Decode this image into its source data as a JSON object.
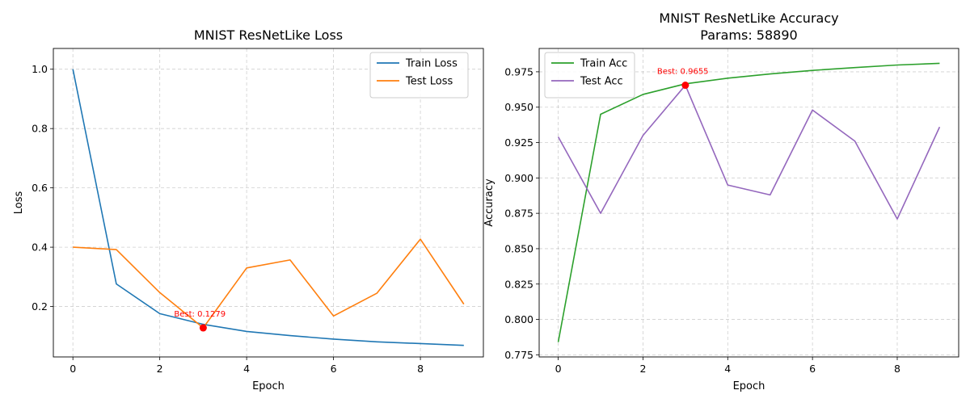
{
  "chart_data": [
    {
      "type": "line",
      "title": "MNIST ResNetLike Loss",
      "xlabel": "Epoch",
      "ylabel": "Loss",
      "xlim": [
        -0.45,
        9.45
      ],
      "ylim": [
        0.03,
        1.07
      ],
      "xticks": [
        0,
        2,
        4,
        6,
        8
      ],
      "xtick_labels": [
        "0",
        "2",
        "4",
        "6",
        "8"
      ],
      "yticks": [
        0.2,
        0.4,
        0.6,
        0.8,
        1.0
      ],
      "ytick_labels": [
        "0.2",
        "0.4",
        "0.6",
        "0.8",
        "1.0"
      ],
      "grid": true,
      "legend_position": "upper right",
      "x": [
        0,
        1,
        2,
        3,
        4,
        5,
        6,
        7,
        8,
        9
      ],
      "series": [
        {
          "name": "Train Loss",
          "color": "#1f77b4",
          "values": [
            1.0,
            0.276,
            0.176,
            0.14,
            0.116,
            0.102,
            0.09,
            0.081,
            0.075,
            0.069
          ]
        },
        {
          "name": "Test Loss",
          "color": "#ff7f0e",
          "values": [
            0.4,
            0.392,
            0.247,
            0.128,
            0.33,
            0.357,
            0.168,
            0.245,
            0.427,
            0.208
          ]
        }
      ],
      "best_point": {
        "x": 3,
        "y": 0.1279,
        "label": "Best: 0.1279",
        "color": "#ff0000"
      }
    },
    {
      "type": "line",
      "title": "MNIST ResNetLike Accuracy",
      "subtitle": "Params: 58890",
      "xlabel": "Epoch",
      "ylabel": "Accuracy",
      "xlim": [
        -0.45,
        9.45
      ],
      "ylim": [
        0.7735,
        0.9915
      ],
      "xticks": [
        0,
        2,
        4,
        6,
        8
      ],
      "xtick_labels": [
        "0",
        "2",
        "4",
        "6",
        "8"
      ],
      "yticks": [
        0.775,
        0.8,
        0.825,
        0.85,
        0.875,
        0.9,
        0.925,
        0.95,
        0.975
      ],
      "ytick_labels": [
        "0.775",
        "0.800",
        "0.825",
        "0.850",
        "0.875",
        "0.900",
        "0.925",
        "0.950",
        "0.975"
      ],
      "grid": true,
      "legend_position": "upper left",
      "x": [
        0,
        1,
        2,
        3,
        4,
        5,
        6,
        7,
        8,
        9
      ],
      "series": [
        {
          "name": "Train Acc",
          "color": "#2ca02c",
          "values": [
            0.784,
            0.945,
            0.959,
            0.9665,
            0.9705,
            0.9735,
            0.976,
            0.978,
            0.9798,
            0.981
          ]
        },
        {
          "name": "Test Acc",
          "color": "#9467bd",
          "values": [
            0.929,
            0.875,
            0.93,
            0.9655,
            0.895,
            0.888,
            0.948,
            0.926,
            0.871,
            0.936
          ]
        }
      ],
      "best_point": {
        "x": 3,
        "y": 0.9655,
        "label": "Best: 0.9655",
        "color": "#ff0000"
      }
    }
  ]
}
